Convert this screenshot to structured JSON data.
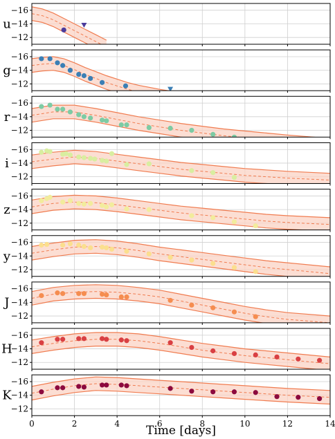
{
  "chart_data": {
    "type": "scatter",
    "xlabel": "Time [days]",
    "xlim": [
      0,
      14
    ],
    "x_ticks": [
      0,
      2,
      4,
      6,
      8,
      10,
      12,
      14
    ],
    "ylim_per_panel": [
      -11,
      -17
    ],
    "y_ticks": [
      -16,
      -14,
      -12
    ],
    "y_inverted": true,
    "grid": true,
    "panels": [
      {
        "band": "u",
        "color": "#4b3b9b",
        "points": [
          [
            1.5,
            -13.1
          ]
        ],
        "upper_limits": [
          [
            2.45,
            -13.8
          ]
        ],
        "model": [
          [
            0,
            -15.5
          ],
          [
            0.5,
            -15.2
          ],
          [
            1,
            -14.6
          ],
          [
            1.5,
            -13.8
          ],
          [
            2,
            -13.0
          ],
          [
            2.5,
            -12.2
          ],
          [
            3,
            -11.4
          ],
          [
            3.5,
            -10.6
          ]
        ],
        "model_halfwidth": 1.0
      },
      {
        "band": "g",
        "color": "#3b7fb5",
        "points": [
          [
            0.45,
            -15.7
          ],
          [
            0.85,
            -15.7
          ],
          [
            1.2,
            -15.1
          ],
          [
            1.45,
            -14.7
          ],
          [
            1.8,
            -14.0
          ],
          [
            2.2,
            -13.4
          ],
          [
            2.45,
            -13.2
          ],
          [
            2.75,
            -12.8
          ],
          [
            3.3,
            -12.2
          ],
          [
            4.4,
            -11.7
          ]
        ],
        "upper_limits": [
          [
            6.5,
            -11.2
          ]
        ],
        "model": [
          [
            0,
            -14.7
          ],
          [
            0.5,
            -14.9
          ],
          [
            1,
            -15.0
          ],
          [
            1.5,
            -14.7
          ],
          [
            2,
            -14.1
          ],
          [
            2.5,
            -13.4
          ],
          [
            3,
            -12.8
          ],
          [
            3.5,
            -12.2
          ],
          [
            4,
            -11.7
          ],
          [
            4.5,
            -11.2
          ],
          [
            5,
            -10.8
          ],
          [
            6,
            -10.2
          ],
          [
            7,
            -9.7
          ]
        ],
        "model_halfwidth": 1.0
      },
      {
        "band": "r",
        "color": "#7dcba4",
        "points": [
          [
            0.45,
            -15.5
          ],
          [
            0.85,
            -15.7
          ],
          [
            1.2,
            -15.1
          ],
          [
            1.45,
            -15.1
          ],
          [
            1.8,
            -14.7
          ],
          [
            2.2,
            -14.3
          ],
          [
            2.45,
            -14.0
          ],
          [
            2.75,
            -13.8
          ],
          [
            3.3,
            -13.5
          ],
          [
            3.5,
            -13.4
          ],
          [
            4.2,
            -12.8
          ],
          [
            4.45,
            -12.8
          ],
          [
            5.5,
            -12.4
          ],
          [
            6.5,
            -12.3
          ],
          [
            7.5,
            -12.0
          ],
          [
            8.5,
            -11.4
          ],
          [
            9.5,
            -11.0
          ]
        ],
        "upper_limits": [],
        "model": [
          [
            0,
            -14.2
          ],
          [
            1,
            -14.7
          ],
          [
            2,
            -14.7
          ],
          [
            3,
            -14.2
          ],
          [
            4,
            -13.6
          ],
          [
            5,
            -13.0
          ],
          [
            6,
            -12.5
          ],
          [
            7,
            -12.0
          ],
          [
            8,
            -11.6
          ],
          [
            9,
            -11.2
          ],
          [
            10,
            -10.9
          ],
          [
            11,
            -10.6
          ],
          [
            12,
            -10.3
          ],
          [
            14,
            -9.8
          ]
        ],
        "model_halfwidth": 1.0
      },
      {
        "band": "i",
        "color": "#d9eea0",
        "points": [
          [
            0.45,
            -15.6
          ],
          [
            0.7,
            -15.8
          ],
          [
            0.85,
            -15.7
          ],
          [
            1.45,
            -15.3
          ],
          [
            1.6,
            -15.4
          ],
          [
            1.8,
            -15.2
          ],
          [
            2.2,
            -14.9
          ],
          [
            2.45,
            -14.8
          ],
          [
            2.75,
            -14.7
          ],
          [
            2.95,
            -14.6
          ],
          [
            3.3,
            -14.4
          ],
          [
            3.5,
            -14.3
          ],
          [
            3.75,
            -15.4
          ],
          [
            4.45,
            -13.8
          ],
          [
            5.5,
            -13.9
          ],
          [
            7.5,
            -12.9
          ],
          [
            8.5,
            -12.6
          ],
          [
            9.5,
            -11.9
          ]
        ],
        "upper_limits": [],
        "model": [
          [
            0,
            -14.2
          ],
          [
            1,
            -14.6
          ],
          [
            2,
            -14.9
          ],
          [
            3,
            -14.7
          ],
          [
            4,
            -14.3
          ],
          [
            5,
            -13.9
          ],
          [
            6,
            -13.5
          ],
          [
            7,
            -13.1
          ],
          [
            8,
            -12.8
          ],
          [
            9,
            -12.5
          ],
          [
            10,
            -12.2
          ],
          [
            11,
            -12.0
          ],
          [
            12,
            -11.8
          ],
          [
            14,
            -11.5
          ]
        ],
        "model_halfwidth": 1.0
      },
      {
        "band": "z",
        "color": "#f2ec9c",
        "points": [
          [
            0.45,
            -15.3
          ],
          [
            0.7,
            -15.6
          ],
          [
            0.85,
            -15.8
          ],
          [
            1.45,
            -15.1
          ],
          [
            1.8,
            -15.3
          ],
          [
            2.2,
            -14.9
          ],
          [
            2.45,
            -14.8
          ],
          [
            2.75,
            -14.9
          ],
          [
            3.3,
            -14.6
          ],
          [
            3.5,
            -14.4
          ],
          [
            3.75,
            -14.7
          ],
          [
            4.45,
            -14.1
          ],
          [
            5.5,
            -14.0
          ],
          [
            7.5,
            -13.1
          ],
          [
            8.5,
            -12.8
          ],
          [
            9.5,
            -12.2
          ],
          [
            10.5,
            -11.6
          ]
        ],
        "upper_limits": [],
        "model": [
          [
            0,
            -14.4
          ],
          [
            1,
            -14.9
          ],
          [
            2,
            -15.1
          ],
          [
            3,
            -15.0
          ],
          [
            4,
            -14.7
          ],
          [
            5,
            -14.3
          ],
          [
            6,
            -13.9
          ],
          [
            7,
            -13.5
          ],
          [
            8,
            -13.2
          ],
          [
            9,
            -12.9
          ],
          [
            10,
            -12.6
          ],
          [
            11,
            -12.3
          ],
          [
            12,
            -12.1
          ],
          [
            14,
            -11.8
          ]
        ],
        "model_halfwidth": 1.0
      },
      {
        "band": "y",
        "color": "#fbdf8e",
        "points": [
          [
            0.45,
            -15.6
          ],
          [
            0.7,
            -15.7
          ],
          [
            1.45,
            -15.6
          ],
          [
            1.8,
            -15.8
          ],
          [
            2.2,
            -15.6
          ],
          [
            2.45,
            -15.4
          ],
          [
            2.75,
            -15.2
          ],
          [
            3.3,
            -15.3
          ],
          [
            3.5,
            -15.2
          ],
          [
            3.75,
            -15.0
          ],
          [
            4.45,
            -14.7
          ],
          [
            5.5,
            -14.3
          ],
          [
            6.5,
            -13.8
          ],
          [
            7.5,
            -13.4
          ],
          [
            8.5,
            -12.9
          ],
          [
            9.5,
            -12.3
          ],
          [
            10.5,
            -11.7
          ]
        ],
        "upper_limits": [],
        "model": [
          [
            0,
            -14.4
          ],
          [
            1,
            -14.9
          ],
          [
            2,
            -15.3
          ],
          [
            3,
            -15.4
          ],
          [
            4,
            -15.2
          ],
          [
            5,
            -14.8
          ],
          [
            6,
            -14.3
          ],
          [
            7,
            -13.9
          ],
          [
            8,
            -13.5
          ],
          [
            9,
            -13.1
          ],
          [
            10,
            -12.7
          ],
          [
            11,
            -12.3
          ],
          [
            12,
            -12.0
          ],
          [
            14,
            -11.4
          ]
        ],
        "model_halfwidth": 1.0
      },
      {
        "band": "J",
        "color": "#f58d50",
        "points": [
          [
            0.45,
            -15.0
          ],
          [
            1.2,
            -15.4
          ],
          [
            1.45,
            -15.3
          ],
          [
            2.2,
            -15.3
          ],
          [
            2.45,
            -15.3
          ],
          [
            3.3,
            -15.2
          ],
          [
            3.5,
            -15.1
          ],
          [
            4.2,
            -14.8
          ],
          [
            4.45,
            -14.8
          ],
          [
            6.5,
            -14.3
          ],
          [
            7.5,
            -13.6
          ],
          [
            8.5,
            -13.2
          ],
          [
            9.5,
            -12.6
          ],
          [
            10.5,
            -11.9
          ]
        ],
        "upper_limits": [],
        "model": [
          [
            0,
            -14.6
          ],
          [
            1,
            -15.2
          ],
          [
            2,
            -15.5
          ],
          [
            3,
            -15.6
          ],
          [
            4,
            -15.5
          ],
          [
            5,
            -15.2
          ],
          [
            6,
            -14.8
          ],
          [
            7,
            -14.2
          ],
          [
            8,
            -13.6
          ],
          [
            9,
            -13.0
          ],
          [
            10,
            -12.4
          ],
          [
            11,
            -11.9
          ],
          [
            12,
            -11.5
          ],
          [
            14,
            -11.0
          ]
        ],
        "model_halfwidth": 1.0
      },
      {
        "band": "H",
        "color": "#d94043",
        "points": [
          [
            0.45,
            -14.9
          ],
          [
            1.2,
            -15.4
          ],
          [
            1.45,
            -15.4
          ],
          [
            2.2,
            -15.5
          ],
          [
            2.45,
            -15.5
          ],
          [
            3.3,
            -15.5
          ],
          [
            3.5,
            -15.4
          ],
          [
            4.2,
            -15.3
          ],
          [
            4.45,
            -15.2
          ],
          [
            6.5,
            -14.9
          ],
          [
            7.5,
            -14.2
          ],
          [
            8.5,
            -13.7
          ],
          [
            9.5,
            -13.3
          ],
          [
            10.5,
            -13.1
          ],
          [
            11.5,
            -12.8
          ],
          [
            12.5,
            -12.5
          ],
          [
            13.5,
            -12.3
          ]
        ],
        "upper_limits": [],
        "model": [
          [
            0,
            -14.3
          ],
          [
            1,
            -14.8
          ],
          [
            2,
            -15.2
          ],
          [
            3,
            -15.4
          ],
          [
            4,
            -15.4
          ],
          [
            5,
            -15.2
          ],
          [
            6,
            -14.8
          ],
          [
            7,
            -14.3
          ],
          [
            8,
            -13.8
          ],
          [
            9,
            -13.4
          ],
          [
            10,
            -13.0
          ],
          [
            11,
            -12.7
          ],
          [
            12,
            -12.4
          ],
          [
            14,
            -11.8
          ]
        ],
        "model_halfwidth": 1.0
      },
      {
        "band": "K",
        "color": "#8c0a3e",
        "points": [
          [
            0.45,
            -14.5
          ],
          [
            1.2,
            -15.1
          ],
          [
            1.45,
            -15.1
          ],
          [
            2.2,
            -15.3
          ],
          [
            2.45,
            -15.2
          ],
          [
            3.3,
            -15.5
          ],
          [
            3.5,
            -15.5
          ],
          [
            4.2,
            -15.5
          ],
          [
            4.45,
            -15.4
          ],
          [
            6.5,
            -15.0
          ],
          [
            7.5,
            -14.6
          ],
          [
            8.5,
            -14.5
          ],
          [
            9.5,
            -14.5
          ],
          [
            10.5,
            -14.4
          ],
          [
            11.5,
            -13.8
          ],
          [
            12.5,
            -13.7
          ],
          [
            13.5,
            -13.5
          ]
        ],
        "upper_limits": [],
        "model": [
          [
            0,
            -14.3
          ],
          [
            1,
            -14.9
          ],
          [
            2,
            -15.4
          ],
          [
            3,
            -15.7
          ],
          [
            4,
            -15.6
          ],
          [
            5,
            -15.4
          ],
          [
            6,
            -15.2
          ],
          [
            7,
            -15.0
          ],
          [
            8,
            -14.8
          ],
          [
            9,
            -14.6
          ],
          [
            10,
            -14.4
          ],
          [
            11,
            -14.2
          ],
          [
            12,
            -14.0
          ],
          [
            14,
            -13.7
          ]
        ],
        "model_halfwidth": 1.0
      }
    ]
  }
}
